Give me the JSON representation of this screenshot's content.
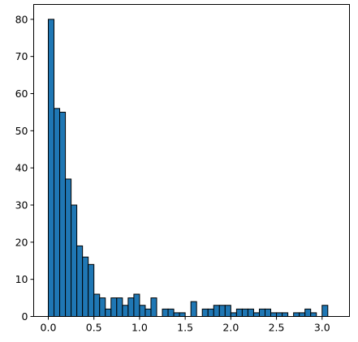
{
  "chart_data": {
    "type": "bar",
    "title": "",
    "xlabel": "",
    "ylabel": "",
    "xlim": [
      -0.16,
      3.3
    ],
    "ylim": [
      0,
      84
    ],
    "bin_width": 0.0625,
    "bin_starts": [
      0,
      0.0625,
      0.125,
      0.1875,
      0.25,
      0.3125,
      0.375,
      0.4375,
      0.5,
      0.5625,
      0.625,
      0.6875,
      0.75,
      0.8125,
      0.875,
      0.9375,
      1.0,
      1.0625,
      1.125,
      1.1875,
      1.25,
      1.3125,
      1.375,
      1.4375,
      1.5,
      1.5625,
      1.625,
      1.6875,
      1.75,
      1.8125,
      1.875,
      1.9375,
      2.0,
      2.0625,
      2.125,
      2.1875,
      2.25,
      2.3125,
      2.375,
      2.4375,
      2.5,
      2.5625,
      2.625,
      2.6875,
      2.75,
      2.8125,
      2.875,
      2.9375,
      3.0,
      3.0625
    ],
    "values": [
      80,
      56,
      55,
      37,
      30,
      19,
      16,
      14,
      6,
      5,
      2,
      5,
      5,
      3,
      5,
      6,
      3,
      2,
      5,
      0,
      2,
      2,
      1,
      1,
      0,
      4,
      0,
      2,
      2,
      3,
      3,
      3,
      1,
      2,
      2,
      2,
      1,
      2,
      2,
      1,
      1,
      1,
      0,
      1,
      1,
      2,
      1,
      0,
      3,
      0
    ],
    "x_ticks": [
      0.0,
      0.5,
      1.0,
      1.5,
      2.0,
      2.5,
      3.0
    ],
    "x_tick_labels": [
      "0.0",
      "0.5",
      "1.0",
      "1.5",
      "2.0",
      "2.5",
      "3.0"
    ],
    "y_ticks": [
      0,
      10,
      20,
      30,
      40,
      50,
      60,
      70,
      80
    ],
    "y_tick_labels": [
      "0",
      "10",
      "20",
      "30",
      "40",
      "50",
      "60",
      "70",
      "80"
    ],
    "bar_color": "#1f77b4",
    "edge_color": "#000000",
    "grid": false,
    "legend": "none"
  }
}
